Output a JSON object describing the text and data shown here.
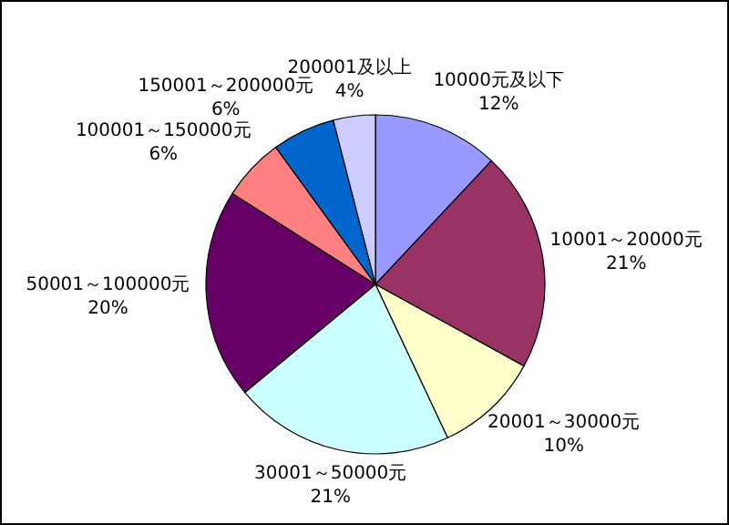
{
  "chart_data": {
    "type": "pie",
    "categories": [
      "10000元及以下",
      "10001～20000元",
      "20001～30000元",
      "30001～50000元",
      "50001～100000元",
      "100001～150000元",
      "150001～200000元",
      "200001及以上"
    ],
    "values": [
      12,
      21,
      10,
      21,
      20,
      6,
      6,
      4
    ],
    "value_labels": [
      "12%",
      "21%",
      "10%",
      "21%",
      "20%",
      "6%",
      "6%",
      "4%"
    ],
    "colors": [
      "#9999ff",
      "#993366",
      "#ffffcc",
      "#ccffff",
      "#660066",
      "#ff8080",
      "#0066cc",
      "#ccccff"
    ]
  }
}
